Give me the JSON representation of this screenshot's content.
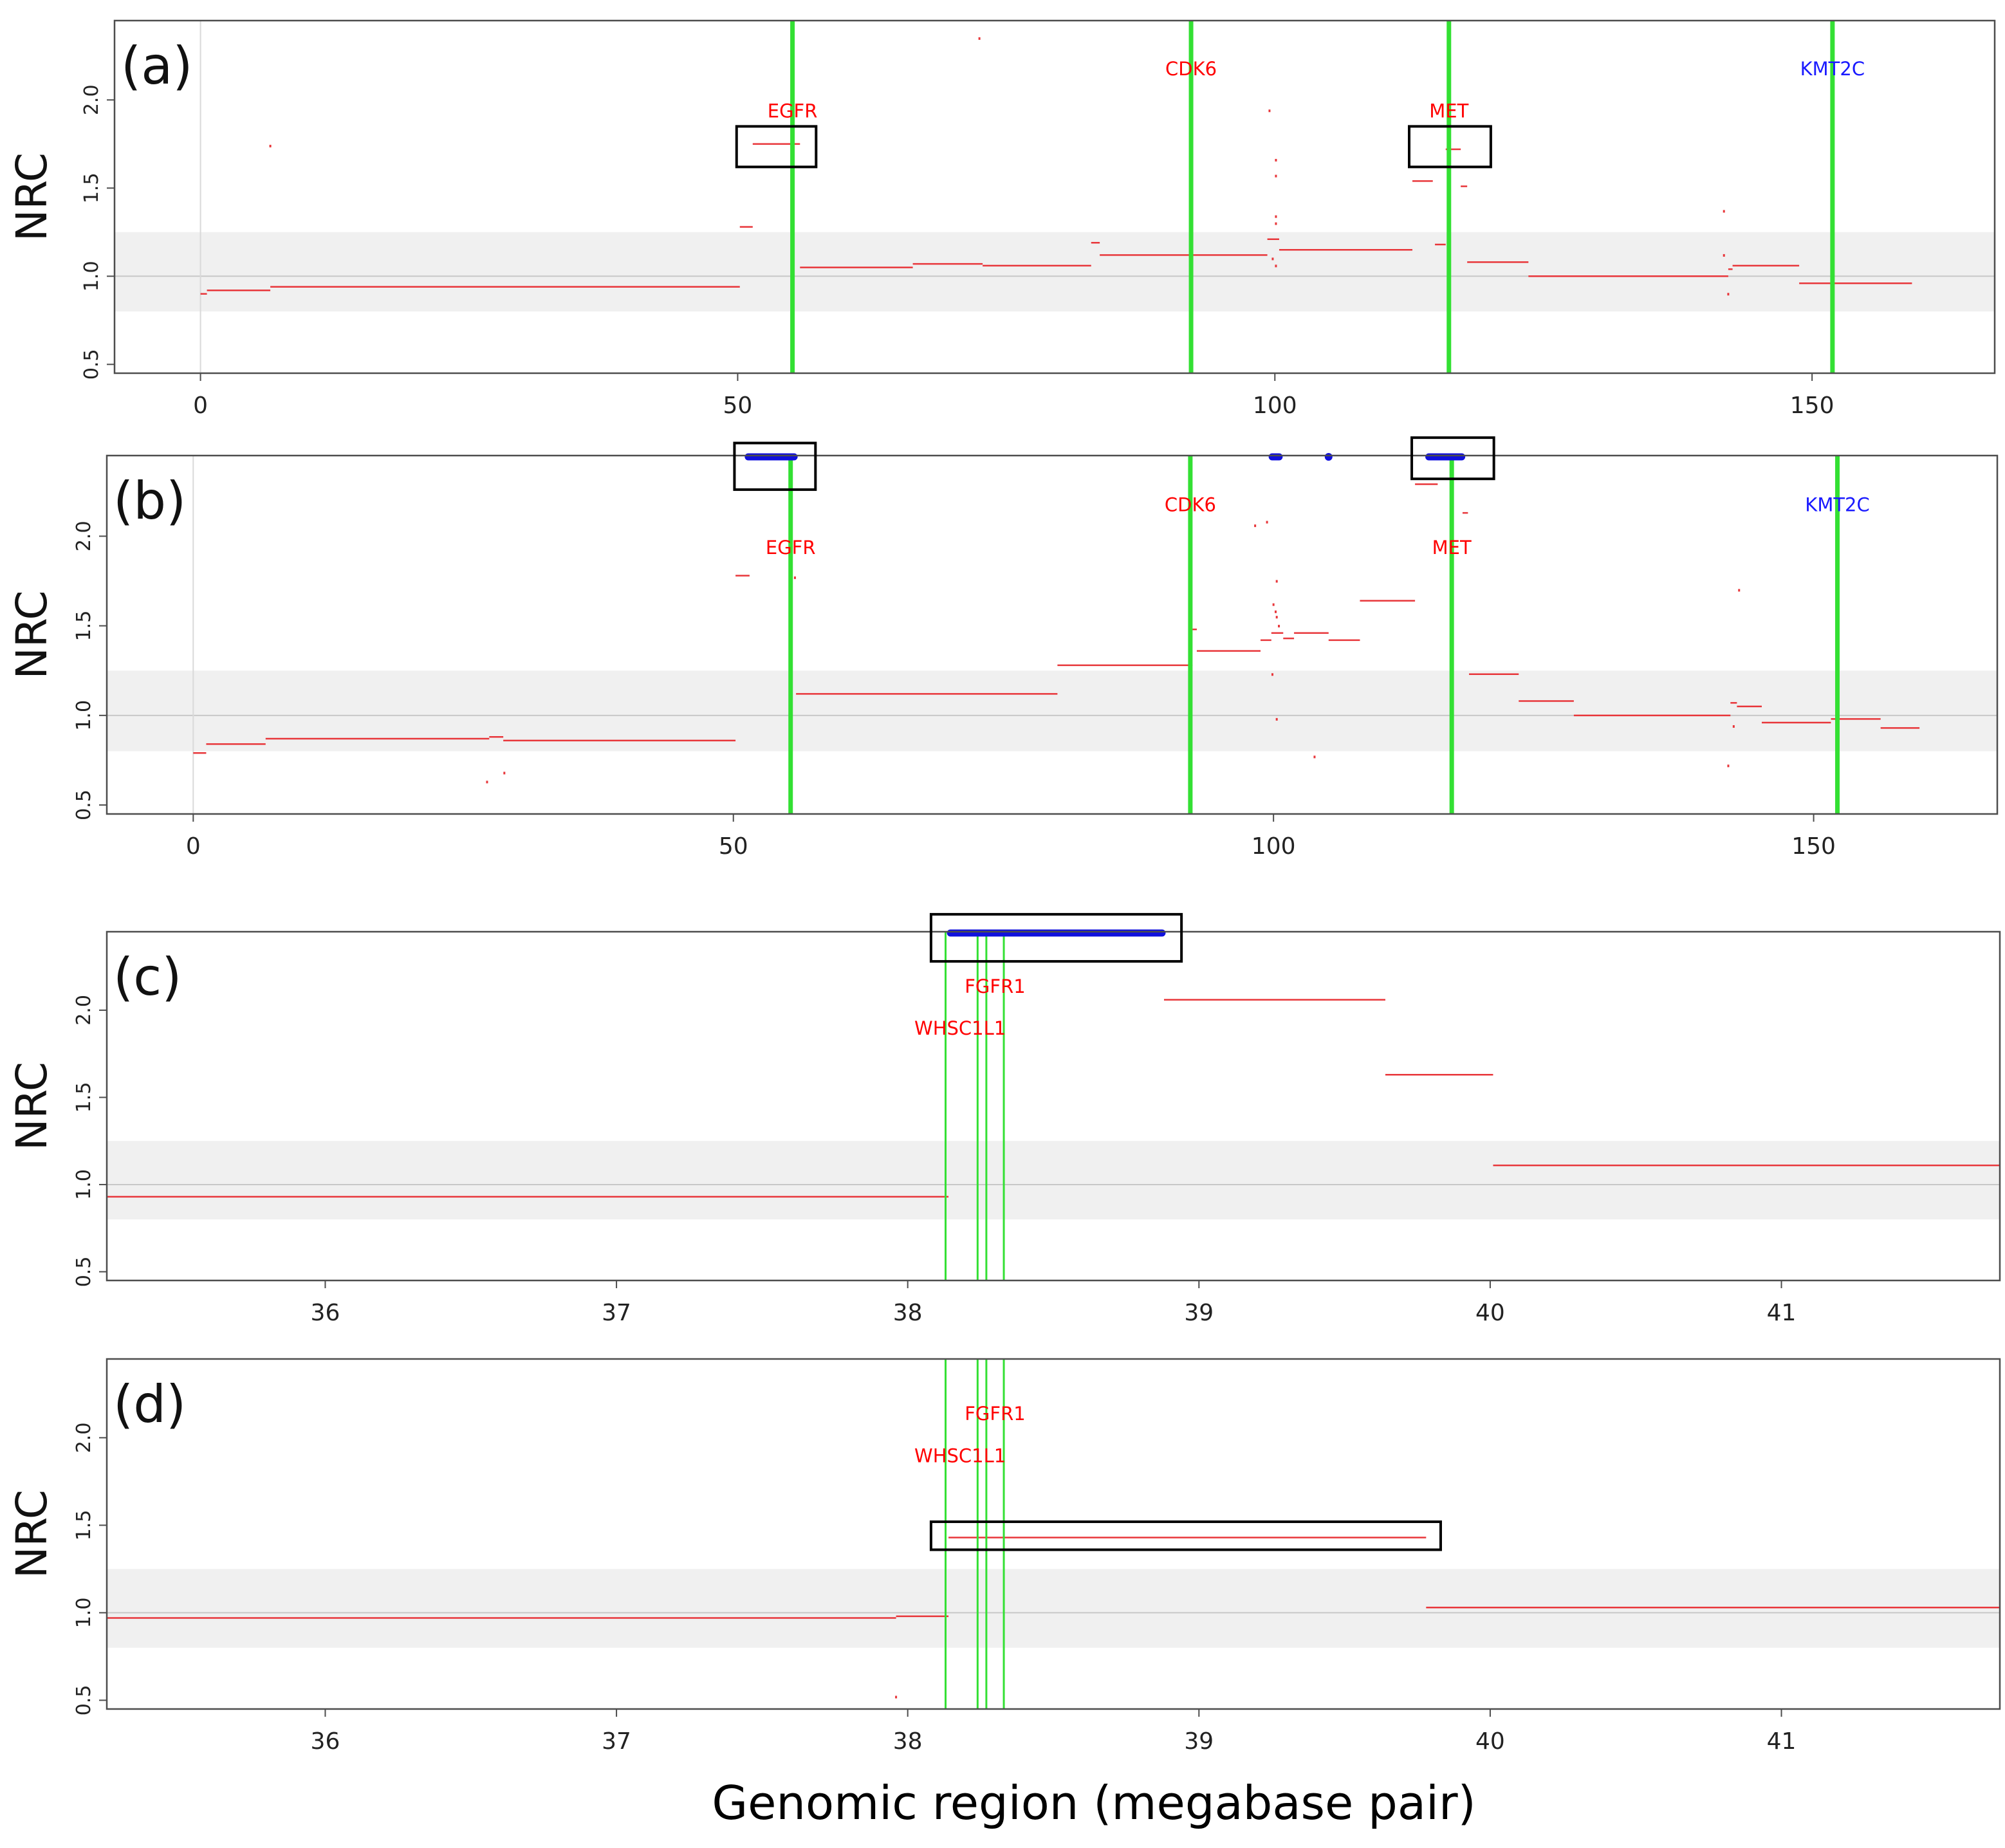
{
  "figure": {
    "xlabel": "Genomic region (megabase pair)"
  },
  "colors": {
    "segment": "#e8363a",
    "gene_red": "#ff0000",
    "gene_blue": "#1a1aff",
    "gene_line": "#33e033",
    "band": "#f0f0f0",
    "refline": "#c8c8c8",
    "amp_marker": "#1010dd",
    "box": "#000000"
  },
  "chart_data": [
    {
      "type": "line",
      "panel_label": "(a)",
      "ylabel": "NRC",
      "xlim": [
        -8,
        167
      ],
      "ylim": [
        0.45,
        2.45
      ],
      "xticks": [
        "0",
        "50",
        "100",
        "150"
      ],
      "xtick_values": [
        0,
        50,
        100,
        150
      ],
      "yticks": [
        "0.5",
        "1.0",
        "1.5",
        "2.0"
      ],
      "ytick_values": [
        0.5,
        1.0,
        1.5,
        2.0
      ],
      "band": [
        0.8,
        1.25
      ],
      "refline": 1.0,
      "start_line": 0,
      "genes": [
        {
          "name": "EGFR",
          "x": 55.1,
          "label_y": 1.9,
          "color": "red"
        },
        {
          "name": "CDK6",
          "x": 92.2,
          "label_y": 2.14,
          "color": "red"
        },
        {
          "name": "MET",
          "x": 116.2,
          "label_y": 1.9,
          "color": "red"
        },
        {
          "name": "KMT2C",
          "x": 151.9,
          "label_y": 2.14,
          "color": "blue"
        }
      ],
      "segments": [
        [
          0,
          0.6,
          0.9
        ],
        [
          0.6,
          6.5,
          0.92
        ],
        [
          6.5,
          50.2,
          0.94
        ],
        [
          50.2,
          51.4,
          1.28
        ],
        [
          51.4,
          55.8,
          1.75
        ],
        [
          55.8,
          66.3,
          1.05
        ],
        [
          66.3,
          72.8,
          1.07
        ],
        [
          72.8,
          82.9,
          1.06
        ],
        [
          82.9,
          83.7,
          1.19
        ],
        [
          83.7,
          99.3,
          1.12
        ],
        [
          99.3,
          100.4,
          1.21
        ],
        [
          100.4,
          112.8,
          1.15
        ],
        [
          112.8,
          114.7,
          1.54
        ],
        [
          114.9,
          115.9,
          1.18
        ],
        [
          115.9,
          117.3,
          1.72
        ],
        [
          117.3,
          117.9,
          1.51
        ],
        [
          117.9,
          123.6,
          1.08
        ],
        [
          123.6,
          142.2,
          1.0
        ],
        [
          142.2,
          142.6,
          1.04
        ],
        [
          142.6,
          148.8,
          1.06
        ],
        [
          148.8,
          159.3,
          0.96
        ]
      ],
      "dots": [
        [
          6.5,
          1.74
        ],
        [
          72.5,
          2.35
        ],
        [
          99.5,
          1.94
        ],
        [
          100.1,
          1.66
        ],
        [
          100.1,
          1.57
        ],
        [
          100.1,
          1.34
        ],
        [
          100.1,
          1.3
        ],
        [
          99.8,
          1.1
        ],
        [
          100.1,
          1.06
        ],
        [
          141.8,
          1.37
        ],
        [
          141.8,
          1.12
        ],
        [
          142.2,
          0.9
        ]
      ],
      "amp_markers": [],
      "boxes": [
        [
          49.9,
          57.3,
          1.62,
          1.85
        ],
        [
          112.5,
          120.1,
          1.62,
          1.85
        ]
      ]
    },
    {
      "type": "line",
      "panel_label": "(b)",
      "ylabel": "NRC",
      "xlim": [
        -8,
        167
      ],
      "ylim": [
        0.45,
        2.45
      ],
      "xticks": [
        "0",
        "50",
        "100",
        "150"
      ],
      "xtick_values": [
        0,
        50,
        100,
        150
      ],
      "yticks": [
        "0.5",
        "1.0",
        "1.5",
        "2.0"
      ],
      "ytick_values": [
        0.5,
        1.0,
        1.5,
        2.0
      ],
      "band": [
        0.8,
        1.25
      ],
      "refline": 1.0,
      "start_line": 0,
      "genes": [
        {
          "name": "EGFR",
          "x": 55.3,
          "label_y": 1.9,
          "color": "red"
        },
        {
          "name": "CDK6",
          "x": 92.3,
          "label_y": 2.14,
          "color": "red"
        },
        {
          "name": "MET",
          "x": 116.5,
          "label_y": 1.9,
          "color": "red"
        },
        {
          "name": "KMT2C",
          "x": 152.2,
          "label_y": 2.14,
          "color": "blue"
        }
      ],
      "segments": [
        [
          0,
          1.2,
          0.79
        ],
        [
          1.2,
          6.7,
          0.84
        ],
        [
          6.7,
          27.4,
          0.87
        ],
        [
          27.4,
          28.7,
          0.88
        ],
        [
          28.7,
          50.2,
          0.86
        ],
        [
          50.2,
          51.5,
          1.78
        ],
        [
          55.8,
          80.0,
          1.12
        ],
        [
          80.0,
          92.5,
          1.28
        ],
        [
          92.5,
          92.9,
          1.48
        ],
        [
          92.9,
          98.8,
          1.36
        ],
        [
          98.8,
          99.8,
          1.42
        ],
        [
          99.8,
          100.9,
          1.46
        ],
        [
          100.9,
          101.9,
          1.43
        ],
        [
          101.9,
          105.1,
          1.46
        ],
        [
          105.1,
          108.0,
          1.42
        ],
        [
          108.0,
          113.1,
          1.64
        ],
        [
          113.1,
          115.2,
          2.29
        ],
        [
          117.5,
          118.0,
          2.13
        ],
        [
          118.1,
          122.7,
          1.23
        ],
        [
          122.7,
          127.8,
          1.08
        ],
        [
          127.8,
          142.3,
          1.0
        ],
        [
          142.3,
          142.9,
          1.07
        ],
        [
          142.9,
          145.2,
          1.05
        ],
        [
          145.2,
          151.6,
          0.96
        ],
        [
          151.6,
          156.2,
          0.98
        ],
        [
          156.2,
          159.8,
          0.93
        ]
      ],
      "dots": [
        [
          27.2,
          0.63
        ],
        [
          28.8,
          0.68
        ],
        [
          55.7,
          1.77
        ],
        [
          98.3,
          2.06
        ],
        [
          99.4,
          2.08
        ],
        [
          100.3,
          1.75
        ],
        [
          100.0,
          1.62
        ],
        [
          100.2,
          1.58
        ],
        [
          100.3,
          1.55
        ],
        [
          100.5,
          1.5
        ],
        [
          99.9,
          1.23
        ],
        [
          100.3,
          0.98
        ],
        [
          103.8,
          0.77
        ],
        [
          142.1,
          0.72
        ],
        [
          142.6,
          0.94
        ],
        [
          143.1,
          1.7
        ]
      ],
      "amp_markers": [
        [
          51.2,
          55.8
        ],
        [
          99.7,
          100.7
        ],
        [
          104.7,
          105.5
        ],
        [
          114.2,
          117.6
        ]
      ],
      "boxes": [
        [
          50.1,
          57.6,
          2.26,
          2.52
        ],
        [
          112.8,
          120.4,
          2.32,
          2.55
        ]
      ]
    },
    {
      "type": "line",
      "panel_label": "(c)",
      "ylabel": "NRC",
      "xlim": [
        35.25,
        41.75
      ],
      "ylim": [
        0.45,
        2.45
      ],
      "xticks": [
        "36",
        "37",
        "38",
        "39",
        "40",
        "41"
      ],
      "xtick_values": [
        36,
        37,
        38,
        39,
        40,
        41
      ],
      "yticks": [
        "0.5",
        "1.0",
        "1.5",
        "2.0"
      ],
      "ytick_values": [
        0.5,
        1.0,
        1.5,
        2.0
      ],
      "band": [
        0.8,
        1.25
      ],
      "refline": 1.0,
      "start_line": null,
      "genes": [
        {
          "name": "FGFR1",
          "x": 38.3,
          "label_y": 2.1,
          "color": "red",
          "label_x": 38.3
        },
        {
          "name": "WHSC1L1",
          "x": 38.13,
          "label_y": 1.86,
          "color": "red",
          "label_x": 38.18
        }
      ],
      "gene_lines": [
        38.13,
        38.24,
        38.27,
        38.33
      ],
      "segments": [
        [
          35.25,
          38.14,
          0.93
        ],
        [
          38.88,
          39.64,
          2.06
        ],
        [
          39.64,
          40.01,
          1.63
        ],
        [
          40.01,
          41.75,
          1.11
        ]
      ],
      "dots": [],
      "amp_markers": [
        [
          38.14,
          38.88
        ]
      ],
      "boxes": [
        [
          38.08,
          38.94,
          2.28,
          2.55
        ]
      ]
    },
    {
      "type": "line",
      "panel_label": "(d)",
      "ylabel": "NRC",
      "xlim": [
        35.25,
        41.75
      ],
      "ylim": [
        0.45,
        2.45
      ],
      "xticks": [
        "36",
        "37",
        "38",
        "39",
        "40",
        "41"
      ],
      "xtick_values": [
        36,
        37,
        38,
        39,
        40,
        41
      ],
      "yticks": [
        "0.5",
        "1.0",
        "1.5",
        "2.0"
      ],
      "ytick_values": [
        0.5,
        1.0,
        1.5,
        2.0
      ],
      "band": [
        0.8,
        1.25
      ],
      "refline": 1.0,
      "start_line": null,
      "genes": [
        {
          "name": "FGFR1",
          "x": 38.3,
          "label_y": 2.1,
          "color": "red",
          "label_x": 38.3
        },
        {
          "name": "WHSC1L1",
          "x": 38.13,
          "label_y": 1.86,
          "color": "red",
          "label_x": 38.18
        }
      ],
      "gene_lines": [
        38.13,
        38.24,
        38.27,
        38.33
      ],
      "segments": [
        [
          35.25,
          37.96,
          0.97
        ],
        [
          37.96,
          38.14,
          0.98
        ],
        [
          38.14,
          39.78,
          1.43
        ],
        [
          39.78,
          41.75,
          1.03
        ]
      ],
      "dots": [
        [
          37.96,
          0.52
        ]
      ],
      "amp_markers": [],
      "boxes": [
        [
          38.08,
          39.83,
          1.36,
          1.52
        ]
      ]
    }
  ]
}
